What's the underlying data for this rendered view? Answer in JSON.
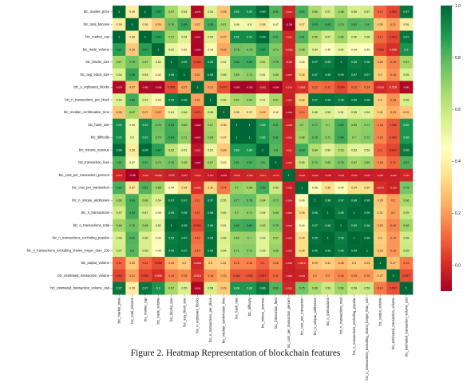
{
  "caption": "Figure 2. Heatmap Representation of blockchain features",
  "chart_data": {
    "type": "heatmap",
    "labels": [
      "btc_market_price",
      "btc_total_bitcoins",
      "btc_market_cap",
      "btc_trade_volume",
      "btc_blocks_size",
      "btc_avg_block_size",
      "btc_n_orphaned_blocks",
      "btc_n_transactions_per_block",
      "btc_median_confirmation_time",
      "btc_hash_rate",
      "btc_difficulty",
      "btc_miners_revenue",
      "btc_transaction_fees",
      "btc_cost_per_transaction_percent",
      "btc_cost_per_transaction",
      "btc_n_unique_addresses",
      "btc_n_transactions",
      "btc_n_transactions_total",
      "btc_n_transactions_excluding_popular",
      "btc_n_transactions_excluding_chains_longer_than_100",
      "btc_output_volume",
      "btc_estimated_transaction_volume",
      "btc_estimated_transaction_volume_usd"
    ],
    "values": [
      [
        "1",
        "0.39",
        "1",
        "0.87",
        "0.67",
        "0.54",
        "-0.076",
        "0.54",
        "0.28",
        "0.92",
        "0.92",
        "0.99",
        "0.81",
        "-0.014",
        "0.82",
        "0.66",
        "0.57",
        "0.68",
        "0.56",
        "0.57",
        "0.11",
        "0.051",
        "0.97"
      ],
      [
        "0.39",
        "1",
        "0.38",
        "0.29",
        "0.76",
        "0.85",
        "0.27",
        "0.83",
        "0.67",
        "0.49",
        "0.5",
        "0.38",
        "0.47",
        "-0.38",
        "0.37",
        "0.83",
        "0.83",
        "0.76",
        "0.81",
        "0.8",
        "0.29",
        "0.21",
        "0.39"
      ],
      [
        "1",
        "0.38",
        "1",
        "0.87",
        "0.67",
        "0.54",
        "-0.081",
        "0.54",
        "0.27",
        "0.92",
        "0.92",
        "0.99",
        "0.81",
        "-0.013",
        "0.81",
        "0.66",
        "0.57",
        "0.68",
        "0.56",
        "0.56",
        "0.11",
        "0.051",
        "0.97"
      ],
      [
        "0.87",
        "0.29",
        "0.87",
        "1",
        "0.52",
        "0.42",
        "-0.088",
        "0.43",
        "0.22",
        "0.76",
        "0.75",
        "0.87",
        "0.73",
        "-0.0095",
        "0.68",
        "0.54",
        "0.45",
        "0.52",
        "0.44",
        "0.45",
        "0.058",
        "0.006",
        "0.9"
      ],
      [
        "0.67",
        "0.76",
        "0.67",
        "0.52",
        "1",
        "0.96",
        "0.065",
        "0.95",
        "0.51",
        "0.83",
        "0.84",
        "0.62",
        "0.76",
        "-0.03",
        "0.44",
        "0.97",
        "0.95",
        "1",
        "0.95",
        "0.96",
        "0.25",
        "0.15",
        "0.67"
      ],
      [
        "0.54",
        "0.85",
        "0.54",
        "0.42",
        "0.96",
        "1",
        "0.21",
        "0.98",
        "0.56",
        "0.69",
        "0.71",
        "0.51",
        "0.65",
        "-0.037",
        "0.34",
        "0.97",
        "0.98",
        "0.99",
        "0.97",
        "0.97",
        "0.3",
        "0.18",
        "0.55"
      ],
      [
        "-0.076",
        "0.27",
        "-0.081",
        "-0.088",
        "0.065",
        "0.21",
        "1",
        "0.21",
        "0.071",
        "-0.093",
        "-0.093",
        "-0.052",
        "-0.096",
        "-0.016",
        "0.0085",
        "0.12",
        "0.11",
        "0.054",
        "0.12",
        "0.14",
        "-0.0063",
        "0.018",
        "-0.081"
      ],
      [
        "0.54",
        "0.83",
        "0.54",
        "0.43",
        "0.95",
        "0.98",
        "0.21",
        "1",
        "0.56",
        "0.67",
        "0.69",
        "0.51",
        "0.67",
        "-0.027",
        "0.32",
        "0.97",
        "0.98",
        "0.96",
        "0.98",
        "0.98",
        "0.3",
        "0.18",
        "0.56"
      ],
      [
        "0.28",
        "0.67",
        "0.27",
        "0.22",
        "0.51",
        "0.56",
        "0.071",
        "0.56",
        "1",
        "0.35",
        "0.37",
        "0.29",
        "0.42",
        "-0.055",
        "0.14",
        "0.55",
        "0.55",
        "0.51",
        "0.55",
        "0.54",
        "0.31",
        "0.23",
        "0.29"
      ],
      [
        "0.92",
        "0.49",
        "0.92",
        "0.76",
        "0.83",
        "0.69",
        "-0.093",
        "0.67",
        "0.35",
        "1",
        "1",
        "0.89",
        "0.81",
        "-0.018",
        "0.7",
        "0.77",
        "0.7",
        "0.83",
        "0.69",
        "0.71",
        "0.16",
        "0.082",
        "0.89"
      ],
      [
        "0.92",
        "0.5",
        "0.92",
        "0.75",
        "0.84",
        "0.71",
        "-0.093",
        "0.69",
        "0.37",
        "1",
        "1",
        "0.89",
        "0.82",
        "-0.016",
        "0.68",
        "0.78",
        "0.71",
        "0.84",
        "0.7",
        "0.72",
        "0.16",
        "0.083",
        "0.89"
      ],
      [
        "0.99",
        "0.38",
        "0.99",
        "0.87",
        "0.62",
        "0.51",
        "-0.052",
        "0.51",
        "0.29",
        "0.89",
        "0.89",
        "1",
        "0.8",
        "-0.011",
        "0.83",
        "0.64",
        "0.54",
        "0.63",
        "0.53",
        "0.53",
        "0.1",
        "0.047",
        "0.96"
      ],
      [
        "0.81",
        "0.47",
        "0.81",
        "0.73",
        "0.76",
        "0.65",
        "-0.096",
        "0.67",
        "0.42",
        "0.81",
        "0.82",
        "0.8",
        "1",
        "-0.019",
        "0.59",
        "0.73",
        "0.69",
        "0.75",
        "0.67",
        "0.69",
        "0.18",
        "0.11",
        "0.81"
      ],
      [
        "-0.014",
        "-0.38",
        "-0.013",
        "-0.0095",
        "-0.03",
        "-0.037",
        "-0.016",
        "-0.027",
        "-0.055",
        "-0.018",
        "-0.016",
        "-0.011",
        "-0.019",
        "1",
        "-0.026",
        "-0.034",
        "-0.036",
        "-0.031",
        "-0.034",
        "-0.033",
        "-0.025",
        "-0.029",
        "-0.013"
      ],
      [
        "0.82",
        "0.37",
        "0.81",
        "0.68",
        "0.44",
        "0.34",
        "0.0085",
        "0.32",
        "0.14",
        "0.7",
        "0.68",
        "0.83",
        "0.59",
        "-0.026",
        "1",
        "0.46",
        "0.35",
        "0.44",
        "0.34",
        "0.34",
        "0.0079",
        "-0.019",
        "0.75"
      ],
      [
        "0.66",
        "0.83",
        "0.66",
        "0.54",
        "0.97",
        "0.97",
        "0.12",
        "0.97",
        "0.55",
        "0.77",
        "0.78",
        "0.64",
        "0.73",
        "-0.034",
        "0.46",
        "1",
        "0.98",
        "0.97",
        "0.98",
        "0.99",
        "0.29",
        "0.2",
        "0.66"
      ],
      [
        "0.57",
        "0.83",
        "0.57",
        "0.45",
        "0.95",
        "0.98",
        "0.11",
        "0.98",
        "0.55",
        "0.7",
        "0.71",
        "0.54",
        "0.69",
        "-0.036",
        "0.35",
        "0.98",
        "1",
        "0.96",
        "1",
        "0.99",
        "0.31",
        "0.2",
        "0.59"
      ],
      [
        "0.68",
        "0.76",
        "0.68",
        "0.52",
        "1",
        "0.99",
        "0.054",
        "0.96",
        "0.51",
        "0.83",
        "0.84",
        "0.63",
        "0.75",
        "-0.031",
        "0.44",
        "0.97",
        "0.96",
        "1",
        "0.95",
        "0.96",
        "0.26",
        "0.16",
        "0.68"
      ],
      [
        "0.56",
        "0.81",
        "0.56",
        "0.44",
        "0.95",
        "0.97",
        "0.12",
        "0.98",
        "0.55",
        "0.69",
        "0.7",
        "0.53",
        "0.67",
        "-0.034",
        "0.34",
        "0.98",
        "1",
        "0.95",
        "1",
        "0.99",
        "0.3",
        "0.19",
        "0.58"
      ],
      [
        "0.57",
        "0.8",
        "0.56",
        "0.45",
        "0.96",
        "0.97",
        "0.14",
        "0.98",
        "0.54",
        "0.71",
        "0.72",
        "0.53",
        "0.69",
        "-0.033",
        "0.34",
        "0.99",
        "0.99",
        "0.96",
        "0.99",
        "1",
        "0.29",
        "0.19",
        "0.59"
      ],
      [
        "0.11",
        "0.29",
        "0.11",
        "0.058",
        "0.25",
        "0.3",
        "-0.0063",
        "0.3",
        "0.31",
        "0.16",
        "0.16",
        "0.1",
        "0.18",
        "-0.025",
        "0.0079",
        "0.29",
        "0.31",
        "0.26",
        "0.3",
        "0.29",
        "1",
        "0.27",
        "0.14"
      ],
      [
        "0.051",
        "0.21",
        "0.051",
        "0.006",
        "0.15",
        "0.18",
        "0.018",
        "0.18",
        "0.23",
        "0.082",
        "0.083",
        "0.047",
        "0.11",
        "-0.029",
        "-0.019",
        "0.2",
        "0.2",
        "0.16",
        "0.19",
        "0.19",
        "0.27",
        "1",
        "0.067"
      ],
      [
        "0.97",
        "0.39",
        "0.97",
        "0.9",
        "0.67",
        "0.55",
        "-0.081",
        "0.56",
        "0.29",
        "0.89",
        "0.89",
        "0.96",
        "0.81",
        "-0.013",
        "0.75",
        "0.66",
        "0.59",
        "0.68",
        "0.58",
        "0.59",
        "0.14",
        "0.067",
        "1"
      ]
    ],
    "colormap": "RdYlGn",
    "vmin": -0.1,
    "vmax": 1.0,
    "colorbar_ticks": [
      "1.0",
      "0.8",
      "0.6",
      "0.4",
      "0.2",
      "0.0"
    ],
    "annotated": true,
    "colors": {
      "low": "#a50026",
      "mid": "#ffffbf",
      "high": "#006837"
    }
  }
}
